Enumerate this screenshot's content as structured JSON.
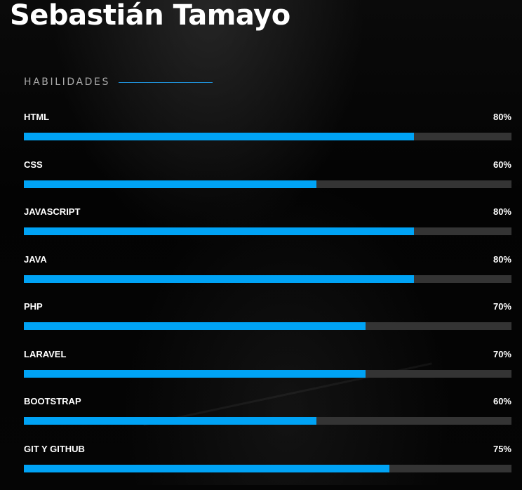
{
  "header": {
    "name": "Sebastián Tamayo"
  },
  "skills_section": {
    "title": "HABILIDADES",
    "accent_color": "#1f8fd6",
    "bar_fill_color": "#00a3f5",
    "bar_track_color": "#343434"
  },
  "skills": [
    {
      "label": "HTML",
      "percent_text": "80%",
      "level": 0.8
    },
    {
      "label": "CSS",
      "percent_text": "60%",
      "level": 0.6
    },
    {
      "label": "JAVASCRIPT",
      "percent_text": "80%",
      "level": 0.8
    },
    {
      "label": "JAVA",
      "percent_text": "80%",
      "level": 0.8
    },
    {
      "label": "PHP",
      "percent_text": "70%",
      "level": 0.7
    },
    {
      "label": "LARAVEL",
      "percent_text": "70%",
      "level": 0.7
    },
    {
      "label": "BOOTSTRAP",
      "percent_text": "60%",
      "level": 0.6
    },
    {
      "label": "GIT Y GITHUB",
      "percent_text": "75%",
      "level": 0.75
    }
  ]
}
